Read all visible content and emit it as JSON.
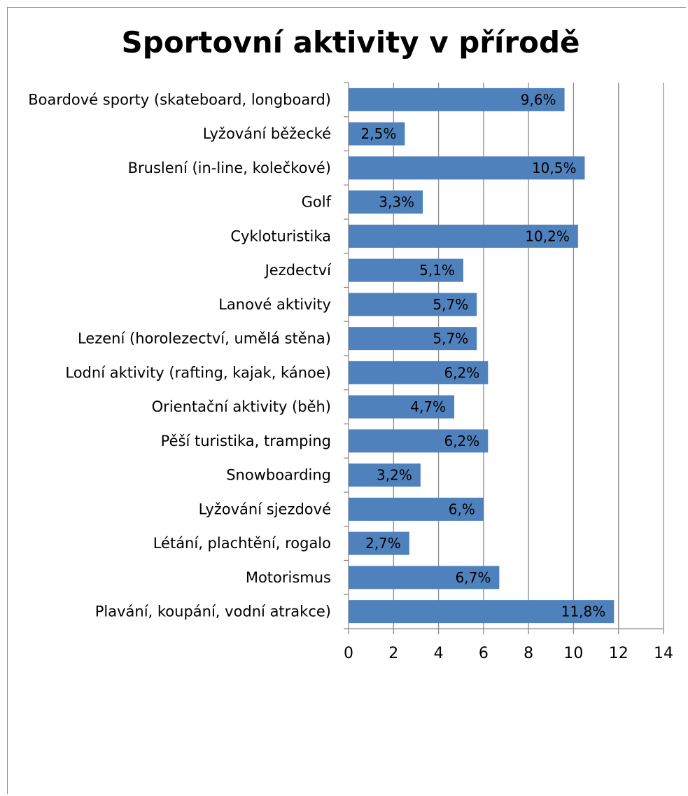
{
  "chart_data": {
    "type": "bar",
    "orientation": "horizontal",
    "title": "Sportovní aktivity v přírodě",
    "xlabel": "",
    "ylabel": "",
    "xlim": [
      0,
      14
    ],
    "x_ticks": [
      "0",
      "2",
      "4",
      "6",
      "8",
      "10",
      "12",
      "14"
    ],
    "grid": "vertical",
    "legend": "none",
    "bar_color": "#4f81bd",
    "categories": [
      "Boardové sporty (skateboard, longboard)",
      "Lyžování běžecké",
      "Bruslení (in-line, kolečkové)",
      "Golf",
      "Cykloturistika",
      "Jezdectví",
      "Lanové aktivity",
      "Lezení (horolezectví, umělá stěna)",
      "Lodní aktivity (rafting, kajak, kánoe)",
      "Orientační aktivity (běh)",
      "Pěší turistika, tramping",
      "Snowboarding",
      "Lyžování sjezdové",
      "Létání, plachtění, rogalo",
      "Motorismus",
      "Plavání, koupání, vodní atrakce)"
    ],
    "values": [
      9.6,
      2.5,
      10.5,
      3.3,
      10.2,
      5.1,
      5.7,
      5.7,
      6.2,
      4.7,
      6.2,
      3.2,
      6.0,
      2.7,
      6.7,
      11.8
    ],
    "data_labels": [
      "9,6%",
      "2,5%",
      "10,5%",
      "3,3%",
      "10,2%",
      "5,1%",
      "5,7%",
      "5,7%",
      "6,2%",
      "4,7%",
      "6,2%",
      "3,2%",
      "6,%",
      "2,7%",
      "6,7%",
      "11,8%"
    ]
  }
}
